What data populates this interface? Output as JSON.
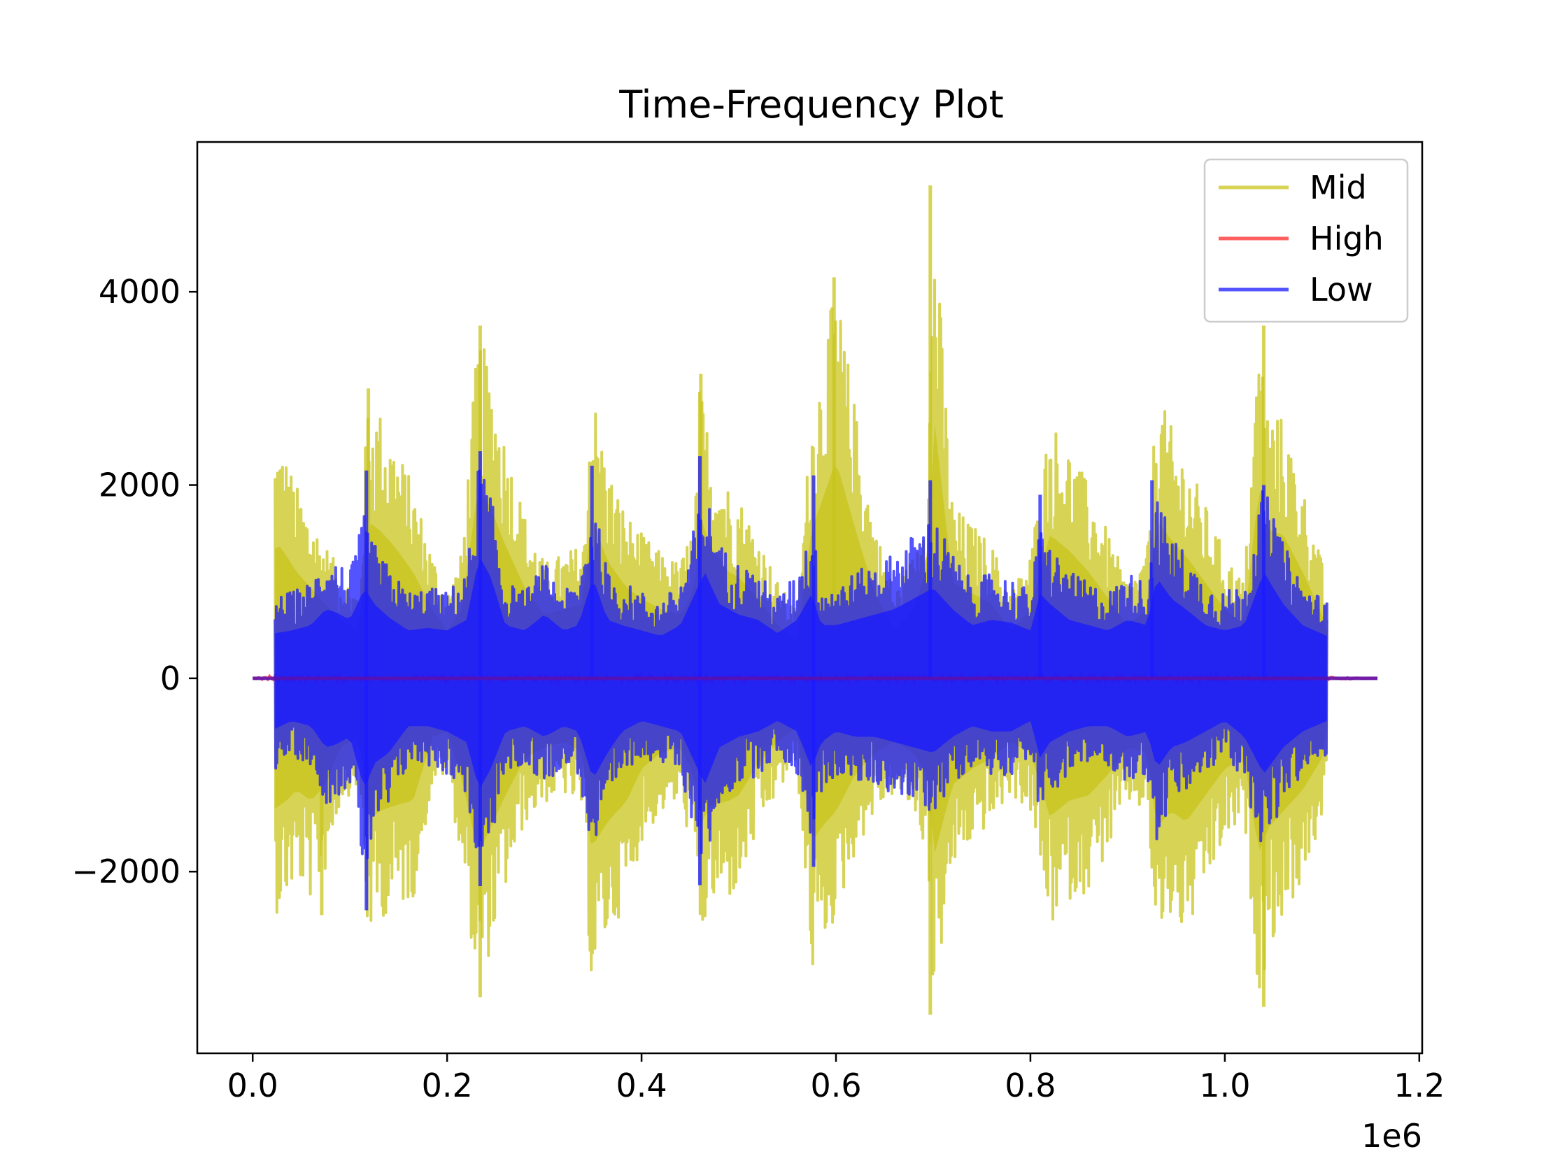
{
  "chart_data": {
    "type": "line",
    "title": "Time-Frequency Plot",
    "xlabel": "",
    "ylabel": "",
    "x_offset_label": "1e6",
    "xlim": [
      -0.057,
      1.203
    ],
    "ylim": [
      -3880,
      5550
    ],
    "x_ticks": [
      0.0,
      0.2,
      0.4,
      0.6,
      0.8,
      1.0,
      1.2
    ],
    "x_tick_labels": [
      "0.0",
      "0.2",
      "0.4",
      "0.6",
      "0.8",
      "1.0",
      "1.2"
    ],
    "y_ticks": [
      -2000,
      0,
      2000,
      4000
    ],
    "y_tick_labels": [
      "−2000",
      "0",
      "2000",
      "4000"
    ],
    "grid": false,
    "legend_position": "top-right",
    "x_range_signal": [
      0.0,
      1.157
    ],
    "active_range": [
      0.023,
      1.105
    ],
    "series": [
      {
        "name": "Mid",
        "color": "#c8c41c",
        "opacity": 0.75,
        "envelope": {
          "x": [
            0.023,
            0.027,
            0.035,
            0.045,
            0.06,
            0.075,
            0.09,
            0.11,
            0.118,
            0.13,
            0.145,
            0.165,
            0.185,
            0.2,
            0.215,
            0.232,
            0.245,
            0.26,
            0.28,
            0.3,
            0.32,
            0.34,
            0.348,
            0.365,
            0.385,
            0.4,
            0.42,
            0.44,
            0.455,
            0.46,
            0.47,
            0.49,
            0.5,
            0.52,
            0.54,
            0.56,
            0.575,
            0.585,
            0.6,
            0.62,
            0.64,
            0.66,
            0.68,
            0.695,
            0.7,
            0.72,
            0.74,
            0.76,
            0.78,
            0.8,
            0.82,
            0.84,
            0.86,
            0.88,
            0.9,
            0.92,
            0.93,
            0.945,
            0.96,
            0.98,
            1.0,
            1.02,
            1.035,
            1.045,
            1.06,
            1.08,
            1.1,
            1.105
          ],
          "upper": [
            2450,
            2500,
            2300,
            2000,
            1700,
            1400,
            1100,
            900,
            2950,
            2800,
            2500,
            2000,
            1300,
            900,
            1300,
            3600,
            3200,
            2500,
            1700,
            1200,
            1300,
            1400,
            3100,
            2200,
            1700,
            1500,
            1300,
            1200,
            1700,
            3100,
            2500,
            2000,
            1900,
            1500,
            1000,
            700,
            2800,
            3300,
            4100,
            2800,
            1600,
            900,
            1300,
            2200,
            5050,
            1800,
            1600,
            1400,
            900,
            1300,
            2700,
            2400,
            2000,
            1500,
            1000,
            1300,
            3000,
            2600,
            2300,
            1800,
            1300,
            1000,
            3600,
            2800,
            2700,
            2000,
            1200,
            900
          ],
          "lower": [
            -2450,
            -2400,
            -2300,
            -2100,
            -2300,
            -2000,
            -1300,
            -1100,
            -2700,
            -2500,
            -2400,
            -2300,
            -1100,
            -1000,
            -1900,
            -3300,
            -2800,
            -2200,
            -1500,
            -1300,
            -1200,
            -1400,
            -3200,
            -2700,
            -2300,
            -1700,
            -1400,
            -1300,
            -1900,
            -2800,
            -2400,
            -2300,
            -2200,
            -1600,
            -1200,
            -900,
            -3100,
            -2800,
            -2500,
            -1800,
            -1400,
            -1200,
            -1400,
            -1900,
            -3400,
            -2000,
            -1700,
            -1500,
            -1200,
            -1400,
            -2600,
            -2300,
            -2200,
            -1800,
            -1300,
            -1400,
            -2800,
            -2500,
            -2700,
            -2200,
            -1700,
            -1500,
            -3300,
            -2800,
            -2500,
            -2100,
            -1500,
            -900
          ],
          "spikes": [
            {
              "x": 0.119,
              "y": 3000
            },
            {
              "x": 0.234,
              "y": 3650
            },
            {
              "x": 0.461,
              "y": 3150
            },
            {
              "x": 0.598,
              "y": 4150
            },
            {
              "x": 0.697,
              "y": 5100
            },
            {
              "x": 1.04,
              "y": 3650
            },
            {
              "x": 0.071,
              "y": -2450
            },
            {
              "x": 0.234,
              "y": -3300
            },
            {
              "x": 0.697,
              "y": -3480
            },
            {
              "x": 1.04,
              "y": -3400
            }
          ]
        }
      },
      {
        "name": "High",
        "color": "#ff2a2a",
        "opacity": 0.75,
        "envelope": {
          "x": [
            0.0,
            0.02,
            0.2,
            0.4,
            0.6,
            0.8,
            1.0,
            1.157
          ],
          "upper": [
            0,
            30,
            40,
            40,
            40,
            40,
            40,
            0
          ],
          "lower": [
            0,
            -30,
            -40,
            -40,
            -40,
            -40,
            -40,
            0
          ]
        }
      },
      {
        "name": "Low",
        "color": "#1a1aff",
        "opacity": 0.75,
        "envelope": {
          "x": [
            0.023,
            0.04,
            0.06,
            0.075,
            0.085,
            0.1,
            0.115,
            0.125,
            0.14,
            0.16,
            0.18,
            0.2,
            0.22,
            0.233,
            0.245,
            0.26,
            0.28,
            0.3,
            0.32,
            0.335,
            0.35,
            0.365,
            0.38,
            0.4,
            0.42,
            0.44,
            0.455,
            0.465,
            0.48,
            0.5,
            0.52,
            0.54,
            0.56,
            0.575,
            0.585,
            0.6,
            0.62,
            0.64,
            0.66,
            0.68,
            0.7,
            0.72,
            0.74,
            0.76,
            0.78,
            0.8,
            0.81,
            0.82,
            0.84,
            0.86,
            0.88,
            0.9,
            0.92,
            0.93,
            0.945,
            0.96,
            0.98,
            1.0,
            1.02,
            1.04,
            1.06,
            1.08,
            1.105
          ],
          "upper": [
            850,
            900,
            1000,
            1300,
            1250,
            1100,
            1700,
            1400,
            1150,
            900,
            950,
            900,
            1100,
            2300,
            1900,
            1000,
            900,
            1200,
            900,
            1000,
            1900,
            1100,
            1000,
            900,
            800,
            1000,
            1600,
            2000,
            1400,
            1200,
            1100,
            850,
            1100,
            1600,
            1000,
            1000,
            1100,
            1200,
            1300,
            1500,
            1700,
            1300,
            1000,
            1100,
            1050,
            900,
            1600,
            1400,
            1100,
            1000,
            900,
            1100,
            1000,
            1900,
            1500,
            1300,
            1000,
            900,
            1000,
            2000,
            1400,
            1000,
            800
          ],
          "lower": [
            -950,
            -800,
            -900,
            -1300,
            -1250,
            -1100,
            -2100,
            -1600,
            -1400,
            -900,
            -900,
            -1000,
            -1200,
            -2100,
            -1700,
            -1000,
            -900,
            -1100,
            -900,
            -1000,
            -1900,
            -1400,
            -1000,
            -800,
            -900,
            -1000,
            -1600,
            -2000,
            -1300,
            -1100,
            -1000,
            -800,
            -1000,
            -1700,
            -1200,
            -1000,
            -1100,
            -1100,
            -1200,
            -1300,
            -1400,
            -1100,
            -900,
            -1000,
            -1000,
            -800,
            -1500,
            -1200,
            -1000,
            -900,
            -900,
            -1100,
            -1000,
            -1700,
            -1300,
            -1200,
            -1000,
            -800,
            -1100,
            -1800,
            -1300,
            -1000,
            -800
          ],
          "spikes": [
            {
              "x": 0.117,
              "y": 2150
            },
            {
              "x": 0.234,
              "y": 2350
            },
            {
              "x": 0.349,
              "y": 2200
            },
            {
              "x": 0.46,
              "y": 2300
            },
            {
              "x": 0.577,
              "y": 2100
            },
            {
              "x": 0.697,
              "y": 2050
            },
            {
              "x": 0.81,
              "y": 1900
            },
            {
              "x": 0.925,
              "y": 2050
            },
            {
              "x": 1.04,
              "y": 2000
            },
            {
              "x": 0.117,
              "y": -2400
            },
            {
              "x": 0.234,
              "y": -2150
            },
            {
              "x": 0.46,
              "y": -2140
            },
            {
              "x": 0.577,
              "y": -1950
            }
          ]
        }
      }
    ],
    "legend_order": [
      "Mid",
      "High",
      "Low"
    ]
  }
}
